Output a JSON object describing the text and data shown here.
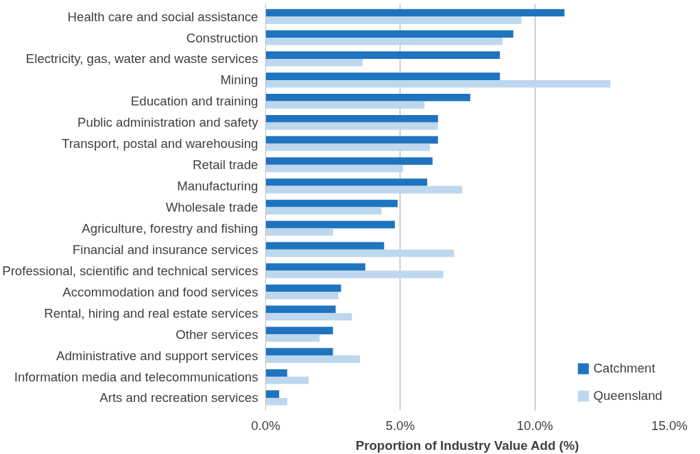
{
  "chart_data": {
    "type": "bar",
    "orientation": "horizontal",
    "xlabel": "Proportion of Industry Value Add (%)",
    "categories": [
      "Health care and social assistance",
      "Construction",
      "Electricity, gas, water and waste services",
      "Mining",
      "Education and training",
      "Public administration and safety",
      "Transport, postal and warehousing",
      "Retail trade",
      "Manufacturing",
      "Wholesale trade",
      "Agriculture, forestry and fishing",
      "Financial and insurance services",
      "Professional, scientific and technical services",
      "Accommodation and food services",
      "Rental, hiring and real estate services",
      "Other services",
      "Administrative and support services",
      "Information media and telecommunications",
      "Arts and recreation services"
    ],
    "series": [
      {
        "name": "Catchment",
        "color": "#1f74c0",
        "values": [
          11.1,
          9.2,
          8.7,
          8.7,
          7.6,
          6.4,
          6.4,
          6.2,
          6.0,
          4.9,
          4.8,
          4.4,
          3.7,
          2.8,
          2.6,
          2.5,
          2.5,
          0.8,
          0.5
        ]
      },
      {
        "name": "Queensland",
        "color": "#bdd7ee",
        "values": [
          9.5,
          8.8,
          3.6,
          12.8,
          5.9,
          6.4,
          6.1,
          5.1,
          7.3,
          4.3,
          2.5,
          7.0,
          6.6,
          2.7,
          3.2,
          2.0,
          3.5,
          1.6,
          0.8
        ]
      }
    ],
    "xlim": [
      0,
      15
    ],
    "xticks": [
      {
        "value": 0,
        "label": "0.0%"
      },
      {
        "value": 5,
        "label": "5.0%"
      },
      {
        "value": 10,
        "label": "10.0%"
      },
      {
        "value": 15,
        "label": "15.0%"
      }
    ],
    "grid": "x",
    "legend": "bottom right"
  }
}
